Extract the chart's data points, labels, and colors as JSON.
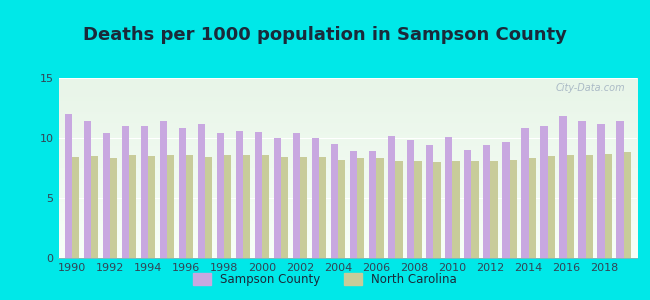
{
  "title": "Deaths per 1000 population in Sampson County",
  "background_color": "#00e8e8",
  "years": [
    1990,
    1991,
    1992,
    1993,
    1994,
    1995,
    1996,
    1997,
    1998,
    1999,
    2000,
    2001,
    2002,
    2003,
    2004,
    2005,
    2006,
    2007,
    2008,
    2009,
    2010,
    2011,
    2012,
    2013,
    2014,
    2015,
    2016,
    2017,
    2018,
    2019
  ],
  "sampson": [
    12.0,
    11.4,
    10.4,
    11.0,
    11.0,
    11.4,
    10.8,
    11.2,
    10.4,
    10.6,
    10.5,
    10.0,
    10.4,
    10.0,
    9.5,
    8.9,
    8.9,
    10.2,
    9.8,
    9.4,
    10.1,
    9.0,
    9.4,
    9.7,
    10.8,
    11.0,
    11.8,
    11.4,
    11.2,
    11.4
  ],
  "nc": [
    8.4,
    8.5,
    8.3,
    8.6,
    8.5,
    8.6,
    8.6,
    8.4,
    8.6,
    8.6,
    8.6,
    8.4,
    8.4,
    8.4,
    8.2,
    8.3,
    8.3,
    8.1,
    8.1,
    8.0,
    8.1,
    8.1,
    8.1,
    8.2,
    8.3,
    8.5,
    8.6,
    8.6,
    8.7,
    8.8
  ],
  "sampson_color": "#c8a8e0",
  "nc_color": "#c8cc9a",
  "ylim": [
    0,
    15
  ],
  "yticks": [
    0,
    5,
    10,
    15
  ],
  "bar_width": 0.38,
  "watermark": "City-Data.com",
  "legend_sampson": "Sampson County",
  "legend_nc": "North Carolina",
  "title_fontsize": 13,
  "tick_fontsize": 8,
  "title_color": "#1a2a3a"
}
